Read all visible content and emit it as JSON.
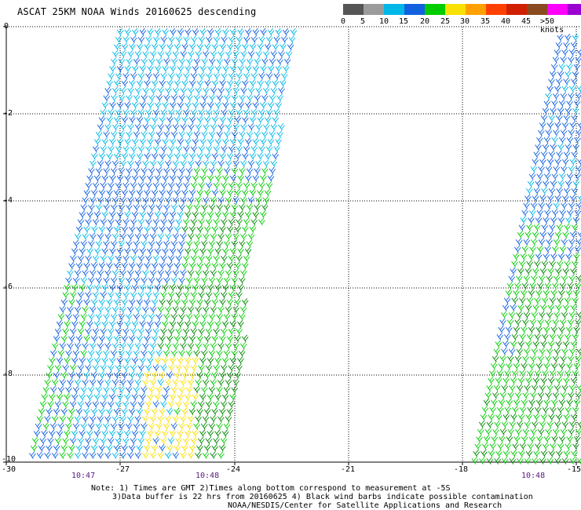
{
  "title": "ASCAT 25KM NOAA Winds 20160625 descending",
  "legend": {
    "labels": [
      "0",
      "5",
      "10",
      "15",
      "20",
      "25",
      "30",
      "35",
      "40",
      "45",
      ">50 knots"
    ],
    "colors": [
      "#555555",
      "#9b9b9b",
      "#00b8e8",
      "#1060e0",
      "#00cc00",
      "#f8e000",
      "#ffa000",
      "#ff4000",
      "#d02000",
      "#8a4a20",
      "#ff00ff",
      "#9a00d0"
    ]
  },
  "axes": {
    "y_labels": [
      "0",
      "-2",
      "-4",
      "-6",
      "-8",
      "-10"
    ],
    "x_labels": [
      "-30",
      "-27",
      "-24",
      "-21",
      "-18",
      "-15"
    ]
  },
  "times": [
    "10:47",
    "10:48",
    "10:48"
  ],
  "notes": [
    "Note: 1) Times are GMT 2)Times along bottom correspond to measurement at -5S",
    "3)Data buffer is 22 hrs from 20160625 4) Black wind barbs indicate possible contamination",
    "NOAA/NESDIS/Center for Satellite Applications and Research"
  ]
}
